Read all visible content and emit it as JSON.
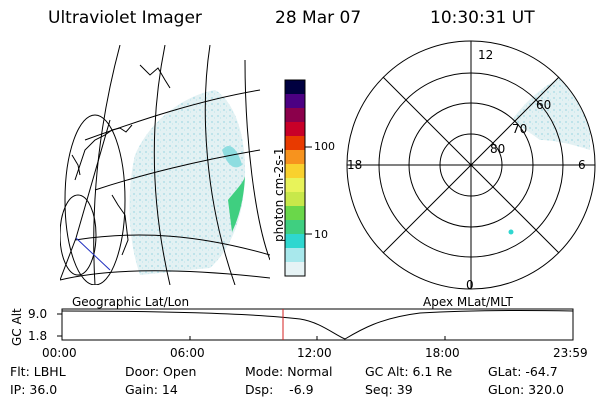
{
  "header": {
    "instrument": "Ultraviolet Imager",
    "date": "28 Mar 07",
    "time": "10:30:31 UT"
  },
  "colorbar": {
    "label": "photon cm-2s-1",
    "ticks": [
      "100",
      "10"
    ],
    "colors": [
      "#000040",
      "#4b0082",
      "#8b004b",
      "#c80028",
      "#e83a00",
      "#f7931e",
      "#f9d12e",
      "#e8f35a",
      "#c8e84a",
      "#6ad74a",
      "#3fcf80",
      "#2fd7d0",
      "#a8e8ec",
      "#e6f3f5"
    ]
  },
  "left_map": {
    "caption": "Geographic Lat/Lon"
  },
  "polar_plot": {
    "caption": "Apex MLat/MLT",
    "mlt_labels": {
      "top": "12",
      "left": "18",
      "right": "6",
      "bottom": "0"
    },
    "lat_labels": [
      "60",
      "70",
      "80"
    ]
  },
  "altitude_strip": {
    "ylabel": "GC Alt",
    "yticks": [
      "9.0",
      "1.8"
    ],
    "xticks": [
      "00:00",
      "06:00",
      "12:00",
      "18:00",
      "23:59"
    ],
    "marker_color": "#d62020"
  },
  "info": {
    "row1": {
      "flt": "Flt: LBHL",
      "door": "Door: Open",
      "mode": "Mode: Normal",
      "gcalt": "GC Alt: 6.1 Re",
      "glat": "GLat: -64.7"
    },
    "row2": {
      "ip": "IP: 36.0",
      "gain": "Gain: 14",
      "dsp": "Dsp:    -6.9",
      "seq": "Seq: 39",
      "glon": "GLon: 320.0"
    }
  }
}
